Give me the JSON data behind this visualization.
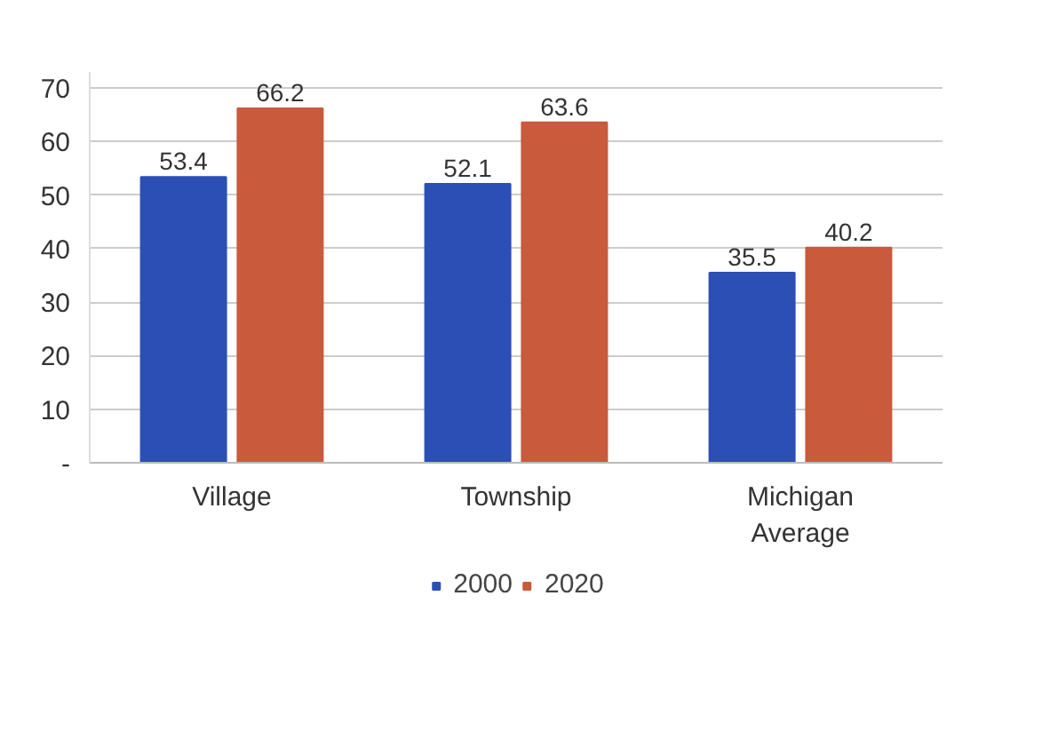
{
  "chart_data": {
    "type": "bar",
    "categories": [
      "Village",
      "Township",
      "Michigan Average"
    ],
    "series": [
      {
        "name": "2000",
        "color": "#2b4fb5",
        "values": [
          53.4,
          52.1,
          35.5
        ]
      },
      {
        "name": "2020",
        "color": "#c95a3c",
        "values": [
          66.2,
          63.6,
          40.2
        ]
      }
    ],
    "ylim": [
      0,
      73
    ],
    "yticks": [
      {
        "value": 0,
        "label": "-"
      },
      10,
      20,
      30,
      40,
      50,
      60,
      70
    ],
    "grid": "y",
    "legend": "bottom",
    "data_labels": true
  }
}
